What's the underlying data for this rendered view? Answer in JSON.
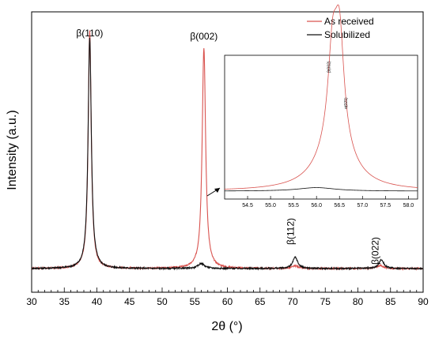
{
  "chart_data": {
    "type": "line",
    "xlabel": "2θ (°)",
    "ylabel": "Intensity (a.u.)",
    "xlim": [
      30,
      90
    ],
    "x_ticks": [
      30,
      35,
      40,
      45,
      50,
      55,
      60,
      65,
      70,
      75,
      80,
      85,
      90
    ],
    "grid": false,
    "legend": {
      "placement": "top-right",
      "entries": [
        "As received",
        "Solubilized"
      ]
    },
    "series": [
      {
        "name": "As received",
        "color": "#d9534f",
        "baseline": 0.03,
        "peaks": [
          {
            "x": 38.9,
            "height": 0.95,
            "width": 0.28
          },
          {
            "x": 56.4,
            "height": 0.88,
            "width": 0.32
          },
          {
            "x": 70.4,
            "height": 0.01,
            "width": 0.6
          },
          {
            "x": 83.4,
            "height": 0.012,
            "width": 0.6
          }
        ]
      },
      {
        "name": "Solubilized",
        "color": "#111111",
        "baseline": 0.03,
        "peaks": [
          {
            "x": 38.9,
            "height": 0.92,
            "width": 0.3
          },
          {
            "x": 56.0,
            "height": 0.02,
            "width": 0.6
          },
          {
            "x": 70.4,
            "height": 0.045,
            "width": 0.45
          },
          {
            "x": 83.6,
            "height": 0.035,
            "width": 0.45
          }
        ]
      }
    ],
    "peak_labels": [
      {
        "label": "β(110)",
        "x": 38.9
      },
      {
        "label": "β(002)",
        "x": 56.4
      },
      {
        "label": "β(112)",
        "x": 70.4
      },
      {
        "label": "β(022)",
        "x": 83.4
      }
    ],
    "inset": {
      "xlim": [
        54.0,
        58.2
      ],
      "x_ticks": [
        "54.5",
        "55.0",
        "55.5",
        "56.0",
        "56.5",
        "57.0",
        "57.5",
        "58.0"
      ],
      "x_tick_values": [
        54.5,
        55.0,
        55.5,
        56.0,
        56.5,
        57.0,
        57.5,
        58.0
      ],
      "series": [
        {
          "name": "As received",
          "color": "#d9534f",
          "baseline": 0.02,
          "peaks": [
            {
              "x": 56.35,
              "height": 0.62,
              "width": 0.12
            },
            {
              "x": 56.5,
              "height": 0.74,
              "width": 0.12
            },
            {
              "x": 56.4,
              "height": 0.32,
              "width": 0.45
            }
          ]
        },
        {
          "name": "Solubilized",
          "color": "#111111",
          "baseline": 0.02,
          "peaks": [
            {
              "x": 56.0,
              "height": 0.025,
              "width": 0.5
            }
          ]
        }
      ],
      "peak_labels": [
        {
          "label": "β(002)",
          "x": 56.35
        },
        {
          "label": "α(021)",
          "x": 56.6
        }
      ]
    }
  }
}
